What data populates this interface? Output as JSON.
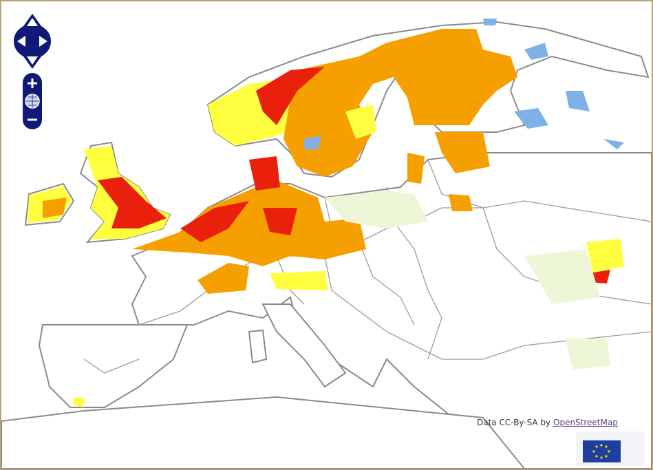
{
  "attribution": {
    "prefix": "Data CC-By-SA by",
    "link": "OpenStreetMap"
  }
}
